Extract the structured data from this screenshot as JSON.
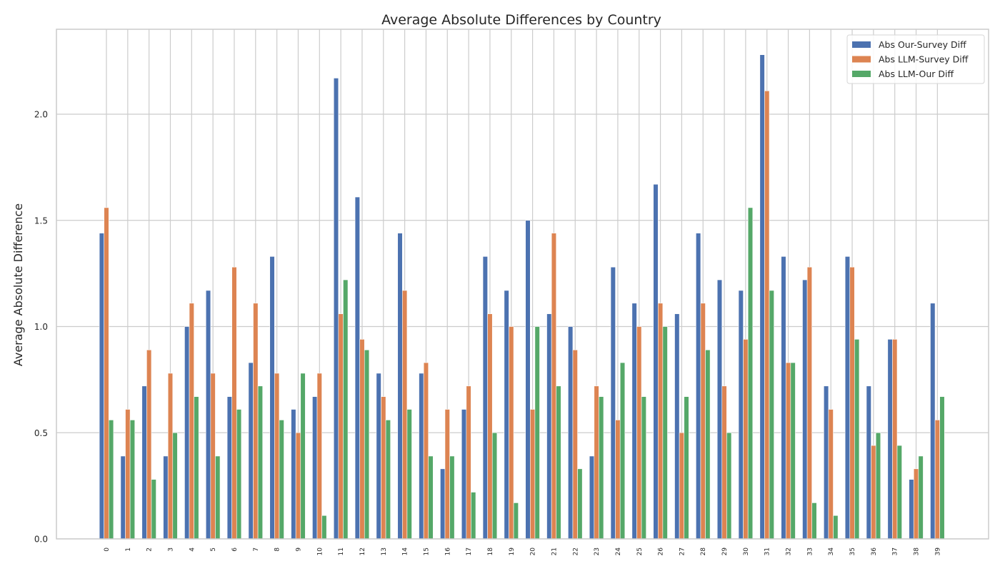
{
  "chart_data": {
    "type": "bar",
    "title": "Average Absolute Differences by Country",
    "xlabel": "",
    "ylabel": "Average Absolute Difference",
    "ylim": [
      0,
      2.4
    ],
    "yticks": [
      "0.0",
      "0.5",
      "1.0",
      "1.5",
      "2.0"
    ],
    "ytick_values": [
      0,
      0.5,
      1.0,
      1.5,
      2.0
    ],
    "grid": true,
    "legend_position": "top-right",
    "categories": [
      "0",
      "1",
      "2",
      "3",
      "4",
      "5",
      "6",
      "7",
      "8",
      "9",
      "10",
      "11",
      "12",
      "13",
      "14",
      "15",
      "16",
      "17",
      "18",
      "19",
      "20",
      "21",
      "22",
      "23",
      "24",
      "25",
      "26",
      "27",
      "28",
      "29",
      "30",
      "31",
      "32",
      "33",
      "34",
      "35",
      "36",
      "37",
      "38",
      "39"
    ],
    "series": [
      {
        "name": "Abs Our-Survey Diff",
        "color": "#4c72b0",
        "values": [
          1.44,
          0.39,
          0.72,
          0.39,
          1.0,
          1.17,
          0.67,
          0.83,
          1.33,
          0.61,
          0.67,
          2.17,
          1.61,
          0.78,
          1.44,
          0.78,
          0.33,
          0.61,
          1.33,
          1.17,
          1.5,
          1.06,
          1.0,
          0.39,
          1.28,
          1.11,
          1.67,
          1.06,
          1.44,
          1.22,
          1.17,
          2.28,
          1.33,
          1.22,
          0.72,
          1.33,
          0.72,
          0.94,
          0.28,
          1.11
        ]
      },
      {
        "name": "Abs LLM-Survey Diff",
        "color": "#dd8452",
        "values": [
          1.56,
          0.61,
          0.89,
          0.78,
          1.11,
          0.78,
          1.28,
          1.11,
          0.78,
          0.5,
          0.78,
          1.06,
          0.94,
          0.67,
          1.17,
          0.83,
          0.61,
          0.72,
          1.06,
          1.0,
          0.61,
          1.44,
          0.89,
          0.72,
          0.56,
          1.0,
          1.11,
          0.5,
          1.11,
          0.72,
          0.94,
          2.11,
          0.83,
          1.28,
          0.61,
          1.28,
          0.44,
          0.94,
          0.33,
          0.56
        ]
      },
      {
        "name": "Abs LLM-Our Diff",
        "color": "#55a868",
        "values": [
          0.56,
          0.56,
          0.28,
          0.5,
          0.67,
          0.39,
          0.61,
          0.72,
          0.56,
          0.78,
          0.11,
          1.22,
          0.89,
          0.56,
          0.61,
          0.39,
          0.39,
          0.22,
          0.5,
          0.17,
          1.0,
          0.72,
          0.33,
          0.67,
          0.83,
          0.67,
          1.0,
          0.67,
          0.89,
          0.5,
          1.56,
          1.17,
          0.83,
          0.17,
          0.11,
          0.94,
          0.5,
          0.44,
          0.39,
          0.67
        ]
      }
    ]
  }
}
